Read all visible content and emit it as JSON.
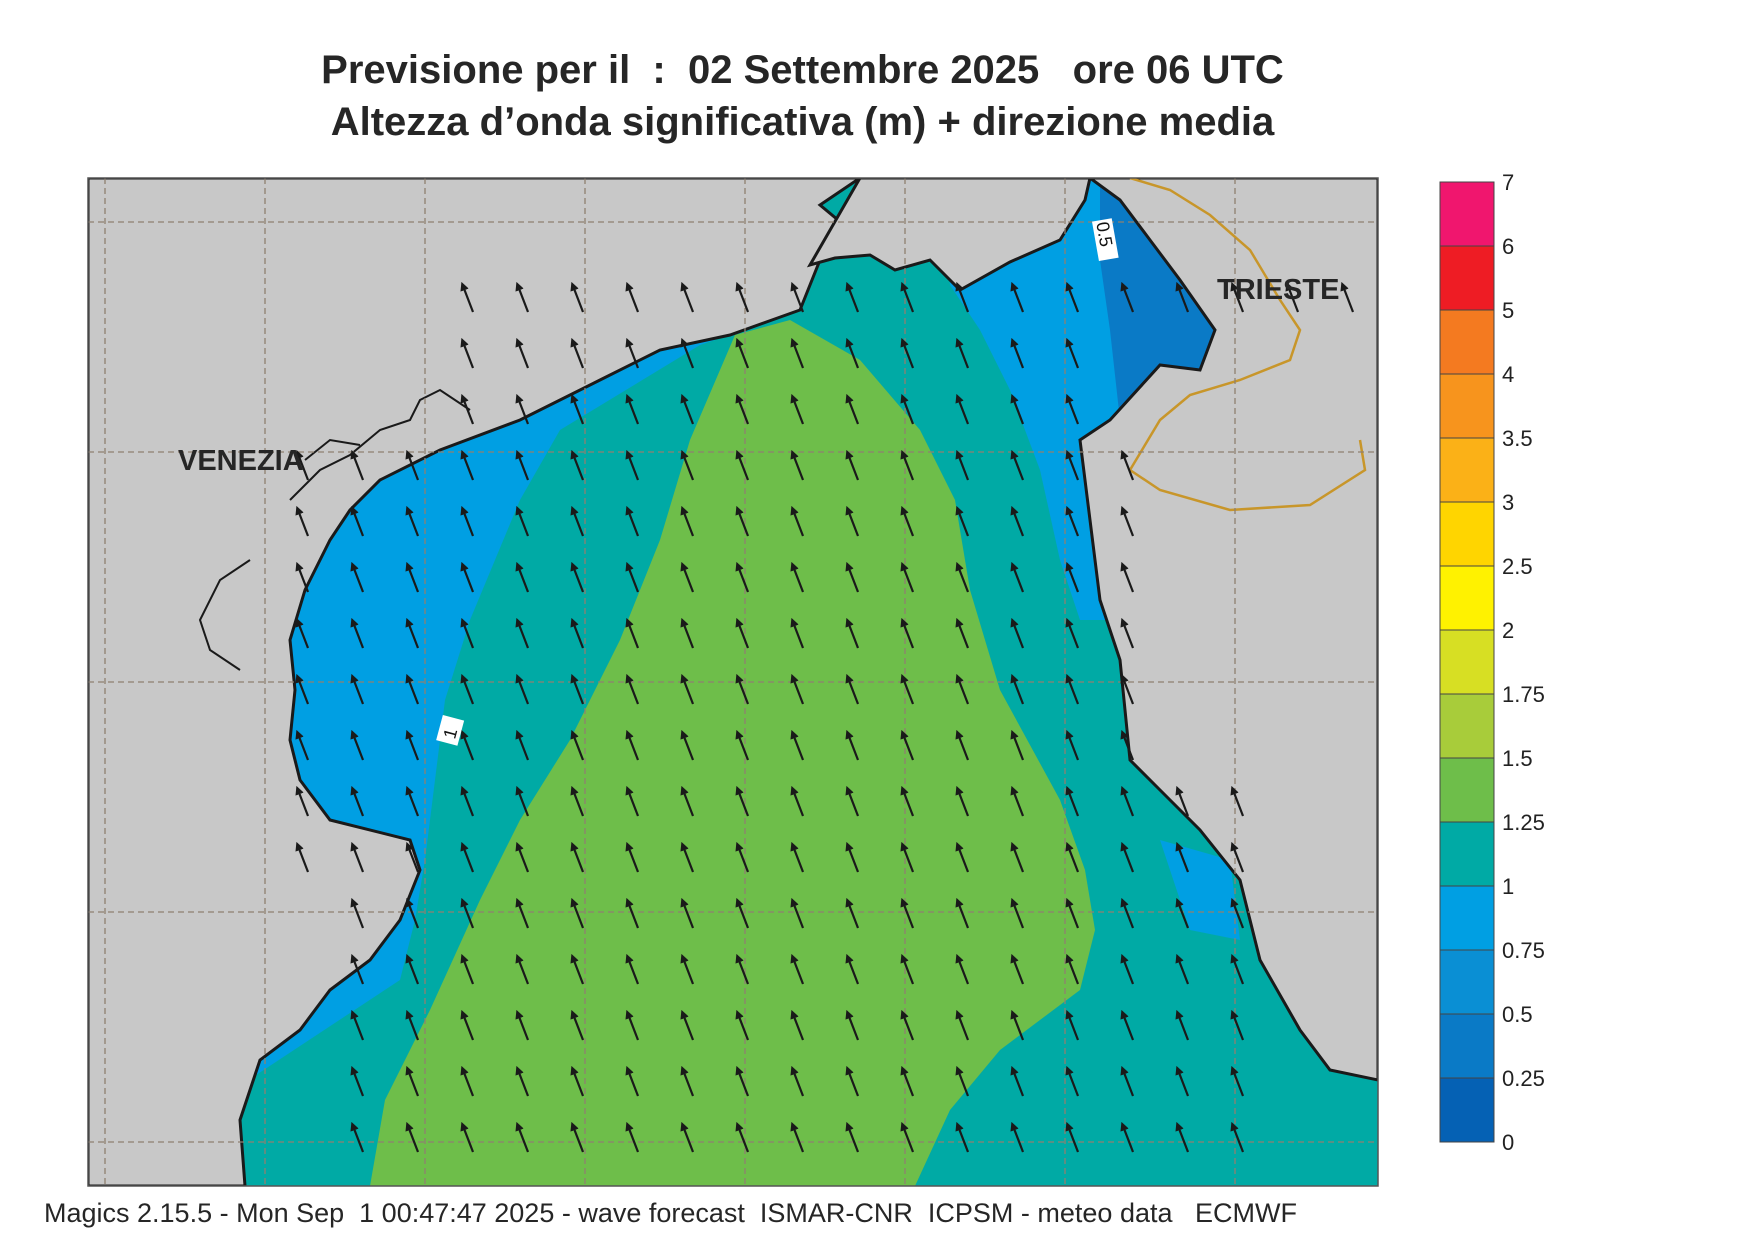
{
  "title": {
    "line1": "Previsione per il  :  02 Settembre 2025   ore 06 UTC",
    "line2": "Altezza d’onda significativa (m) + direzione media"
  },
  "map": {
    "places": [
      {
        "name": "VENEZIA"
      },
      {
        "name": "TRIESTE"
      }
    ],
    "contour_labels": [
      "1",
      "0.5"
    ],
    "wave_direction": "NNW",
    "land_color": "#c8c8c8",
    "border_color": "#c8962a"
  },
  "legend": {
    "ticks": [
      "7",
      "6",
      "5",
      "4",
      "3.5",
      "3",
      "2.5",
      "2",
      "1.75",
      "1.5",
      "1.25",
      "1",
      "0.75",
      "0.5",
      "0.25",
      "0"
    ],
    "colors": [
      "#f0166e",
      "#ee1c24",
      "#f47a20",
      "#f7941d",
      "#fbb117",
      "#ffd500",
      "#fff200",
      "#d7df23",
      "#a8cc3a",
      "#6ebe4a",
      "#00aaa5",
      "#009fe3",
      "#0a8fd4",
      "#0a7ac6",
      "#0561b4"
    ]
  },
  "footer": "Magics 2.15.5 - Mon Sep  1 00:47:47 2025 - wave forecast  ISMAR-CNR  ICPSM - meteo data   ECMWF"
}
